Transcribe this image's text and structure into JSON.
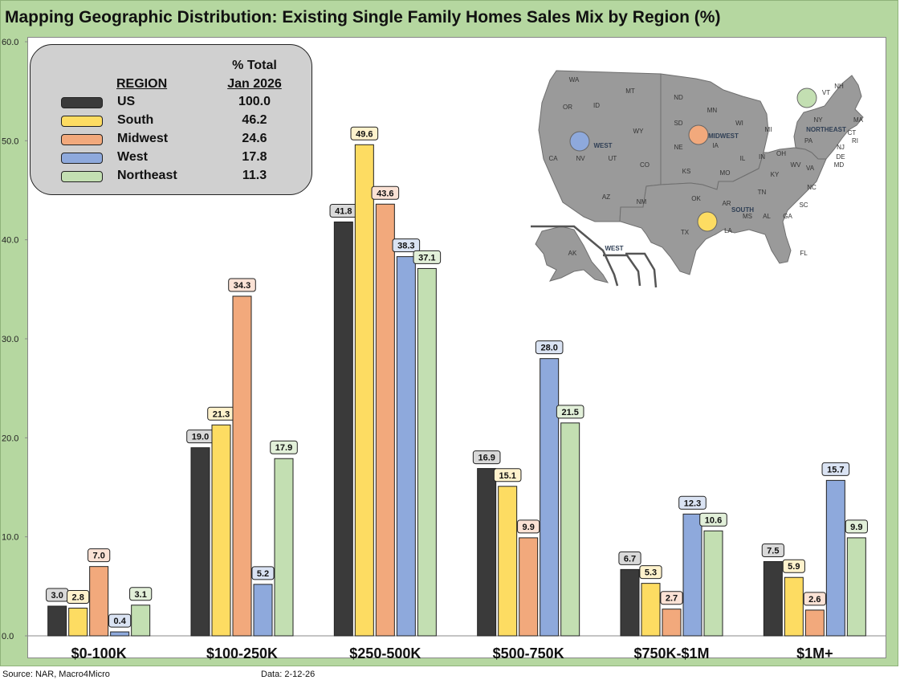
{
  "title": "Mapping Geographic Distribution: Existing Single Family Homes Sales Mix by Region (%)",
  "footer": {
    "source": "Source: NAR, Macro4Micro",
    "date": "Data: 2-12-26"
  },
  "legend": {
    "header_col1": "REGION",
    "header_col2_line1": "% Total",
    "header_col2_line2": "Jan 2026",
    "rows": [
      {
        "name": "US",
        "value": "100.0",
        "color": "#3a3a3a"
      },
      {
        "name": "South",
        "value": "46.2",
        "color": "#fddc62"
      },
      {
        "name": "Midwest",
        "value": "24.6",
        "color": "#f2a97c"
      },
      {
        "name": "West",
        "value": "17.8",
        "color": "#8ea9dc"
      },
      {
        "name": "Northeast",
        "value": "11.3",
        "color": "#c3dfb2"
      }
    ]
  },
  "map": {
    "state_labels": [
      "WA",
      "OR",
      "ID",
      "MT",
      "ND",
      "MN",
      "WI",
      "MI",
      "NY",
      "VT",
      "NH",
      "MA",
      "CT",
      "RI",
      "NJ",
      "DE",
      "MD",
      "PA",
      "OH",
      "IN",
      "IL",
      "IA",
      "SD",
      "NE",
      "WY",
      "CA",
      "NV",
      "UT",
      "CO",
      "KS",
      "MO",
      "KY",
      "WV",
      "VA",
      "NC",
      "TN",
      "SC",
      "GA",
      "AL",
      "MS",
      "AR",
      "LA",
      "OK",
      "TX",
      "NM",
      "AZ",
      "FL",
      "AK"
    ],
    "region_labels": [
      "WEST",
      "MIDWEST",
      "NORTHEAST",
      "SOUTH",
      "WEST"
    ]
  },
  "chart_data": {
    "type": "bar",
    "categories": [
      "$0-100K",
      "$100-250K",
      "$250-500K",
      "$500-750K",
      "$750K-$1M",
      "$1M+"
    ],
    "series": [
      {
        "name": "US",
        "color": "#3a3a3a",
        "values": [
          3.0,
          19.0,
          41.8,
          16.9,
          6.7,
          7.5
        ],
        "labels": [
          "3.0",
          "19.0",
          "41.8",
          "16.9",
          "6.7",
          "7.5"
        ]
      },
      {
        "name": "South",
        "color": "#fddc62",
        "values": [
          2.8,
          21.3,
          49.6,
          15.1,
          5.3,
          5.9
        ],
        "labels": [
          "2.8",
          "21.3",
          "49.6",
          "15.1",
          "5.3",
          "5.9"
        ]
      },
      {
        "name": "Midwest",
        "color": "#f2a97c",
        "values": [
          7.0,
          34.3,
          43.6,
          9.9,
          2.7,
          2.6
        ],
        "labels": [
          "7.0",
          "34.3",
          "43.6",
          "9.9",
          "2.7",
          "2.6"
        ]
      },
      {
        "name": "West",
        "color": "#8ea9dc",
        "values": [
          0.4,
          5.2,
          38.3,
          28.0,
          12.3,
          15.7
        ],
        "labels": [
          "0.4",
          "5.2",
          "38.3",
          "28.0",
          "12.3",
          "15.7"
        ]
      },
      {
        "name": "Northeast",
        "color": "#c3dfb2",
        "values": [
          3.1,
          17.9,
          37.1,
          21.5,
          10.6,
          9.9
        ],
        "labels": [
          "3.1",
          "17.9",
          "37.1",
          "21.5",
          "10.6",
          "9.9"
        ]
      }
    ],
    "label_fills": [
      "#d9d9d9",
      "#fff2cc",
      "#fbe2d5",
      "#dae3f3",
      "#e2f0d9"
    ],
    "ylim": [
      0,
      60
    ],
    "yticks": [
      "0.0",
      "10.0",
      "20.0",
      "30.0",
      "40.0",
      "50.0",
      "60.0"
    ],
    "grid": false,
    "legend_position": "top-left"
  }
}
